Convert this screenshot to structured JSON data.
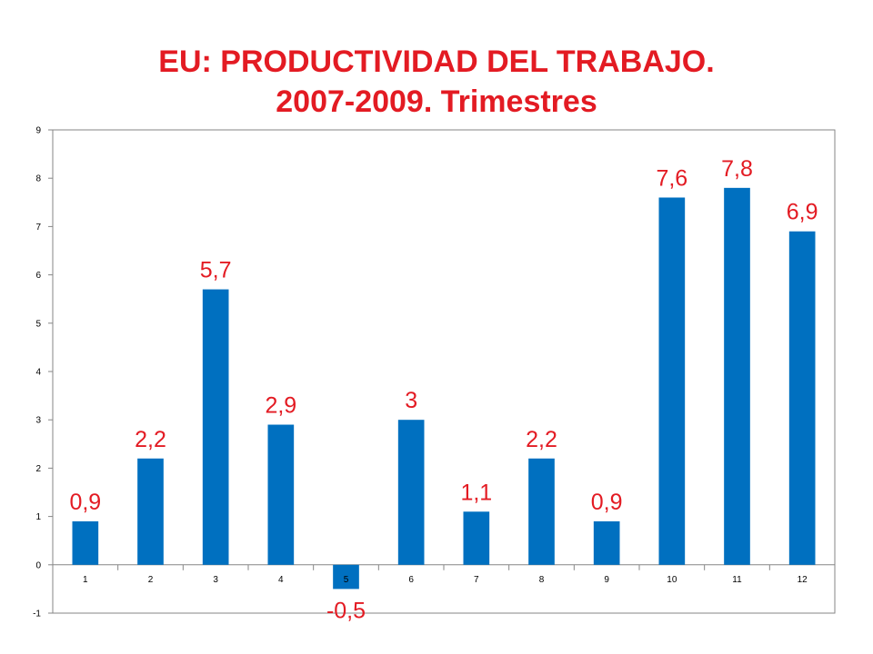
{
  "colors": {
    "title": "#e31b23",
    "bar": "#0070c0",
    "label": "#e31b23",
    "axis": "#868686",
    "grid": "#868686"
  },
  "chart_data": {
    "type": "bar",
    "title_line1": "EU: PRODUCTIVIDAD DEL TRABAJO.",
    "title_line2": "2007-2009. Trimestres",
    "categories": [
      "1",
      "2",
      "3",
      "4",
      "5",
      "6",
      "7",
      "8",
      "9",
      "10",
      "11",
      "12"
    ],
    "values": [
      0.9,
      2.2,
      5.7,
      2.9,
      -0.5,
      3,
      1.1,
      2.2,
      0.9,
      7.6,
      7.8,
      6.9
    ],
    "data_labels": [
      "0,9",
      "2,2",
      "5,7",
      "2,9",
      "-0,5",
      "3",
      "1,1",
      "2,2",
      "0,9",
      "7,6",
      "7,8",
      "6,9"
    ],
    "ylim": [
      -1,
      9
    ],
    "yticks": [
      -1,
      0,
      1,
      2,
      3,
      4,
      5,
      6,
      7,
      8,
      9
    ],
    "grid": false,
    "legend": "none",
    "xlabel": "",
    "ylabel": ""
  }
}
